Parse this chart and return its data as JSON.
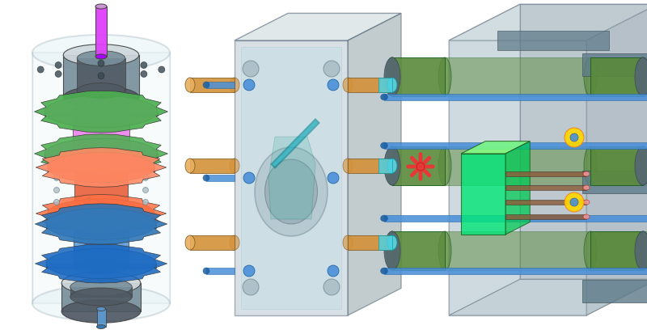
{
  "background_color": "#ffffff",
  "figsize": [
    8.0,
    4.13
  ],
  "dpi": 100,
  "colors": {
    "magenta": "#E040FB",
    "magenta_dark": "#AA00FF",
    "pink": "#EE82EE",
    "pink_light": "#F8BBD9",
    "green_gear": "#4CAF50",
    "orange_red": "#E8603C",
    "orange_red_light": "#F4A080",
    "blue_gear": "#5B9BD5",
    "blue_gear_dark": "#2E75B6",
    "gray_dark": "#505A64",
    "gray_med": "#78909C",
    "gray_light": "#B0BEC5",
    "gray_lighter": "#CFD8DC",
    "gray_lightest": "#ECEFF1",
    "teal": "#4DD0E1",
    "teal_dark": "#0097A7",
    "orange": "#D4913A",
    "orange_light": "#E8B060",
    "olive_green": "#5A8A3C",
    "olive_green_dark": "#3B6B1F",
    "olive_green_light": "#7AB050",
    "red": "#E53935",
    "yellow": "#FFD600",
    "blue_rod": "#4A90D9",
    "blue_rod_dark": "#1A5FA0",
    "brown": "#8B5E3C",
    "gray_cyl": "#5A6A78",
    "glass": "#D0E8F0",
    "green_bright": "#00E676",
    "green_bright_dark": "#00C853"
  }
}
